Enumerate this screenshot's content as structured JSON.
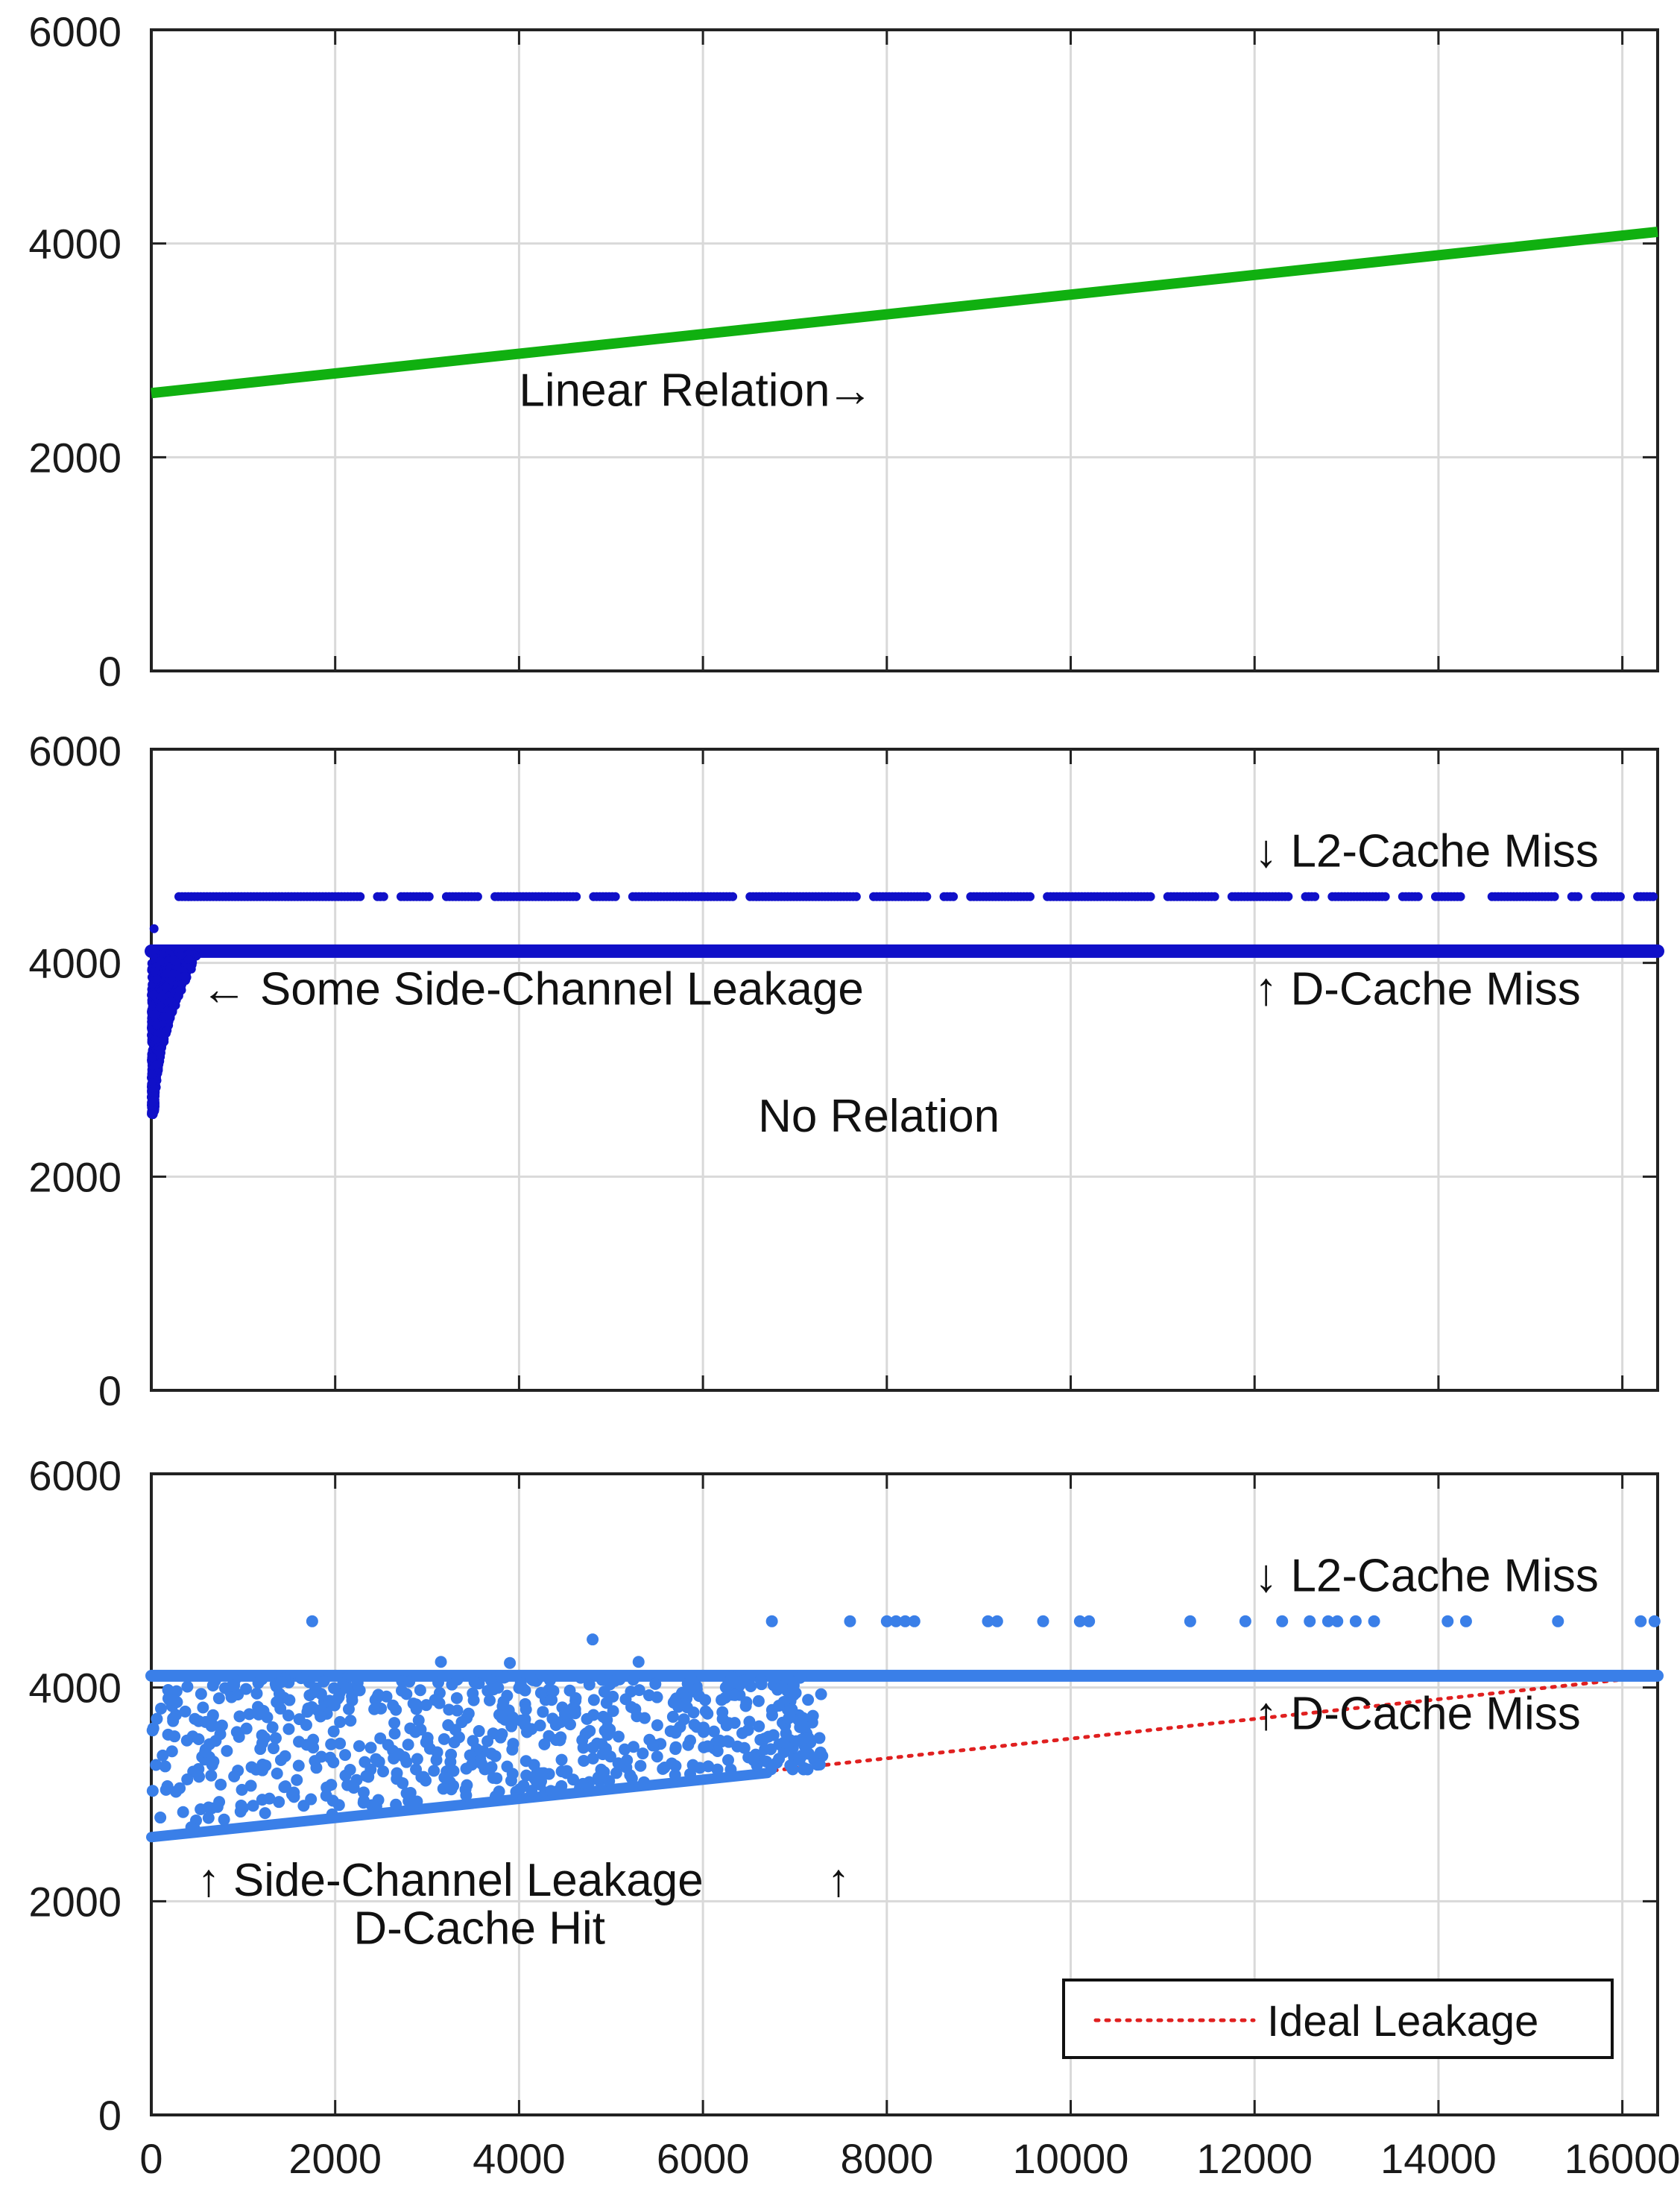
{
  "colors": {
    "linear": "#10b010",
    "dark_blue": "#1010c8",
    "light_blue": "#3a7fe8",
    "ideal": "#e02020",
    "grid": "#d9d9d9",
    "axis": "#222222"
  },
  "chart_data": [
    {
      "type": "line",
      "xlim": [
        0,
        16384
      ],
      "ylim": [
        0,
        6000
      ],
      "xticks": [
        2000,
        4000,
        6000,
        8000,
        10000,
        12000,
        14000,
        16000
      ],
      "yticks": [
        0,
        2000,
        4000,
        6000
      ],
      "ytick_labels": [
        "0",
        "2000",
        "4000",
        "6000"
      ],
      "grid": true,
      "series": [
        {
          "x": [
            0,
            16384
          ],
          "y": [
            2600,
            4110
          ]
        }
      ],
      "annotations": [
        {
          "text": "Linear Relation",
          "x": 4000,
          "y": 2480
        },
        {
          "text": "→",
          "x": 7350,
          "y": 2480
        }
      ]
    },
    {
      "type": "scatter",
      "xlim": [
        0,
        16384
      ],
      "ylim": [
        0,
        6000
      ],
      "xticks": [
        2000,
        4000,
        6000,
        8000,
        10000,
        12000,
        14000,
        16000
      ],
      "yticks": [
        0,
        2000,
        4000,
        6000
      ],
      "ytick_labels": [
        "0",
        "2000",
        "4000",
        "6000"
      ],
      "grid": true,
      "series": [
        {
          "name": "",
          "cluster": "D-Cache Miss",
          "y": 4110,
          "x_range": [
            0,
            16384
          ]
        },
        {
          "name": "",
          "cluster": "L2-Cache Miss",
          "y": 4620,
          "x_range": [
            300,
            16384
          ]
        },
        {
          "name": "",
          "cluster": "leakage",
          "x_range": [
            0,
            500
          ],
          "y_range": [
            2580,
            4110
          ]
        }
      ],
      "annotations": [
        {
          "text": "↓ L2-Cache Miss",
          "x": 12000,
          "y": 4900
        },
        {
          "text": "← Some Side-Channel Leakage",
          "x": 540,
          "y": 3610
        },
        {
          "text": "↑ D-Cache Miss",
          "x": 12000,
          "y": 3610
        },
        {
          "text": "No Relation",
          "x": 6600,
          "y": 2420
        }
      ]
    },
    {
      "type": "scatter",
      "xlim": [
        0,
        16384
      ],
      "ylim": [
        0,
        6000
      ],
      "xticks": [
        0,
        2000,
        4000,
        6000,
        8000,
        10000,
        12000,
        14000,
        16000
      ],
      "xtick_labels": [
        "0",
        "2000",
        "4000",
        "6000",
        "8000",
        "10000",
        "12000",
        "14000",
        "16000"
      ],
      "yticks": [
        0,
        2000,
        4000,
        6000
      ],
      "ytick_labels": [
        "0",
        "2000",
        "4000",
        "6000"
      ],
      "grid": true,
      "legend_position": "bottom-right",
      "series": [
        {
          "name": "Ideal Leakage",
          "style": "dotted",
          "x": [
            0,
            16384
          ],
          "y": [
            2600,
            4110
          ]
        },
        {
          "name": "",
          "cluster": "D-Cache Miss",
          "y": 4110,
          "x_range": [
            0,
            16384
          ]
        },
        {
          "name": "",
          "cluster": "L2-Cache Miss",
          "y": 4620,
          "x_points": [
            1750,
            6750,
            7600,
            8000,
            8100,
            8200,
            8300,
            9100,
            9200,
            9700,
            10100,
            10200,
            11300,
            11900,
            12300,
            12600,
            12800,
            12900,
            13100,
            13300,
            14100,
            14300,
            15300,
            16200,
            16350
          ]
        },
        {
          "name": "",
          "cluster": "D-Cache Hit",
          "x_range": [
            0,
            6700
          ],
          "y": [
            2600,
            3200
          ]
        },
        {
          "name": "",
          "cluster": "leakage",
          "x_range": [
            0,
            7300
          ],
          "y_range": [
            2600,
            4250
          ]
        }
      ],
      "annotations": [
        {
          "text": "↓ L2-Cache Miss",
          "x": 12000,
          "y": 4900
        },
        {
          "text": "↑ D-Cache Miss",
          "x": 12000,
          "y": 3610
        },
        {
          "text": "↑ Side-Channel Leakage",
          "x": 500,
          "y": 2050
        },
        {
          "text": "↑",
          "x": 7350,
          "y": 2050
        },
        {
          "text": "D-Cache Hit",
          "x": 2200,
          "y": 1600
        }
      ]
    }
  ]
}
